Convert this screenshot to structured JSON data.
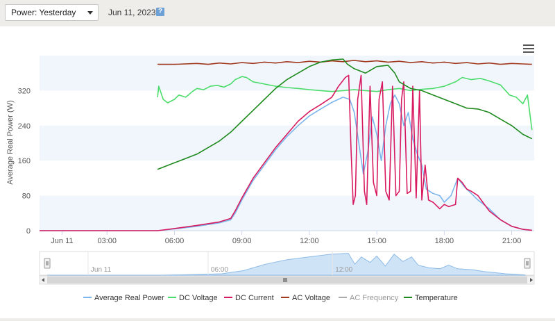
{
  "controls": {
    "period_select": "Power: Yesterday",
    "date": "Jun 11, 2023",
    "help": "?"
  },
  "colors": {
    "average_real_power": "#7cb5ec",
    "dc_voltage": "#4cdc6c",
    "dc_current": "#d81b60",
    "ac_voltage": "#a0391e",
    "ac_frequency": "#aaaaaa",
    "temperature": "#1e8a1e",
    "band": "#f0f6fb"
  },
  "chart_data": {
    "type": "line",
    "ylabel": "Average Real Power (W)",
    "ylim": [
      0,
      400
    ],
    "yticks": [
      0,
      80,
      160,
      240,
      320
    ],
    "xlim": [
      0,
      22
    ],
    "xticks": [
      {
        "x": 1,
        "label": "Jun 11"
      },
      {
        "x": 3,
        "label": "03:00"
      },
      {
        "x": 6,
        "label": "06:00"
      },
      {
        "x": 9,
        "label": "09:00"
      },
      {
        "x": 12,
        "label": "12:00"
      },
      {
        "x": 15,
        "label": "15:00"
      },
      {
        "x": 18,
        "label": "18:00"
      },
      {
        "x": 21,
        "label": "21:00"
      }
    ],
    "navigator_labels": [
      {
        "x": 2,
        "label": "Jun 11"
      },
      {
        "x": 7.5,
        "label": "06:00"
      },
      {
        "x": 13.2,
        "label": "12:00"
      }
    ],
    "legend": [
      "Average Real Power",
      "DC Voltage",
      "DC Current",
      "AC Voltage",
      "AC Frequency",
      "Temperature"
    ],
    "legend_position": "bottom",
    "series": [
      {
        "name": "Average Real Power",
        "key": "average_real_power",
        "points": [
          [
            0,
            0
          ],
          [
            5.25,
            0
          ],
          [
            6,
            4
          ],
          [
            7,
            10
          ],
          [
            8,
            18
          ],
          [
            8.5,
            25
          ],
          [
            8.7,
            40
          ],
          [
            9,
            70
          ],
          [
            9.5,
            115
          ],
          [
            10,
            150
          ],
          [
            10.5,
            185
          ],
          [
            11,
            215
          ],
          [
            11.5,
            240
          ],
          [
            12,
            262
          ],
          [
            12.5,
            278
          ],
          [
            13,
            293
          ],
          [
            13.5,
            305
          ],
          [
            13.8,
            300
          ],
          [
            14,
            270
          ],
          [
            14.2,
            200
          ],
          [
            14.4,
            130
          ],
          [
            14.6,
            180
          ],
          [
            14.8,
            260
          ],
          [
            15,
            220
          ],
          [
            15.2,
            160
          ],
          [
            15.4,
            240
          ],
          [
            15.6,
            290
          ],
          [
            15.8,
            310
          ],
          [
            16,
            290
          ],
          [
            16.2,
            240
          ],
          [
            16.4,
            270
          ],
          [
            16.6,
            210
          ],
          [
            16.8,
            175
          ],
          [
            17,
            150
          ],
          [
            17.2,
            95
          ],
          [
            17.5,
            85
          ],
          [
            17.8,
            80
          ],
          [
            18,
            65
          ],
          [
            18.3,
            80
          ],
          [
            18.6,
            120
          ],
          [
            18.9,
            100
          ],
          [
            19.2,
            85
          ],
          [
            19.5,
            70
          ],
          [
            20,
            50
          ],
          [
            20.5,
            25
          ],
          [
            21,
            10
          ],
          [
            21.5,
            3
          ],
          [
            21.9,
            1
          ]
        ]
      },
      {
        "name": "DC Voltage",
        "key": "dc_voltage",
        "points": [
          [
            5.25,
            305
          ],
          [
            5.3,
            330
          ],
          [
            5.5,
            300
          ],
          [
            5.7,
            292
          ],
          [
            6,
            300
          ],
          [
            6.2,
            310
          ],
          [
            6.5,
            305
          ],
          [
            6.8,
            318
          ],
          [
            7,
            325
          ],
          [
            7.3,
            322
          ],
          [
            7.6,
            330
          ],
          [
            7.9,
            332
          ],
          [
            8.2,
            328
          ],
          [
            8.5,
            335
          ],
          [
            8.7,
            345
          ],
          [
            9,
            352
          ],
          [
            9.2,
            350
          ],
          [
            9.5,
            340
          ],
          [
            10,
            335
          ],
          [
            10.5,
            330
          ],
          [
            11,
            327
          ],
          [
            11.5,
            325
          ],
          [
            12,
            322
          ],
          [
            12.5,
            320
          ],
          [
            13,
            318
          ],
          [
            13.5,
            320
          ],
          [
            14,
            322
          ],
          [
            14.5,
            320
          ],
          [
            15,
            318
          ],
          [
            15.5,
            322
          ],
          [
            16,
            325
          ],
          [
            16.5,
            320
          ],
          [
            17,
            323
          ],
          [
            17.5,
            325
          ],
          [
            18,
            330
          ],
          [
            18.5,
            340
          ],
          [
            18.8,
            350
          ],
          [
            19.2,
            345
          ],
          [
            19.6,
            348
          ],
          [
            20,
            342
          ],
          [
            20.5,
            333
          ],
          [
            20.9,
            310
          ],
          [
            21.2,
            305
          ],
          [
            21.5,
            290
          ],
          [
            21.7,
            310
          ],
          [
            21.9,
            230
          ]
        ]
      },
      {
        "name": "DC Current",
        "key": "dc_current",
        "points": [
          [
            0,
            0
          ],
          [
            5.25,
            0
          ],
          [
            6,
            5
          ],
          [
            7,
            12
          ],
          [
            8,
            20
          ],
          [
            8.5,
            28
          ],
          [
            8.7,
            45
          ],
          [
            9,
            75
          ],
          [
            9.5,
            120
          ],
          [
            10,
            155
          ],
          [
            10.5,
            190
          ],
          [
            11,
            220
          ],
          [
            11.5,
            250
          ],
          [
            12,
            272
          ],
          [
            12.5,
            288
          ],
          [
            13,
            305
          ],
          [
            13.3,
            330
          ],
          [
            13.6,
            350
          ],
          [
            13.75,
            355
          ],
          [
            13.85,
            190
          ],
          [
            13.95,
            60
          ],
          [
            14.05,
            80
          ],
          [
            14.15,
            300
          ],
          [
            14.3,
            355
          ],
          [
            14.45,
            90
          ],
          [
            14.55,
            60
          ],
          [
            14.7,
            330
          ],
          [
            14.85,
            110
          ],
          [
            15,
            80
          ],
          [
            15.1,
            300
          ],
          [
            15.25,
            340
          ],
          [
            15.4,
            90
          ],
          [
            15.55,
            70
          ],
          [
            15.7,
            330
          ],
          [
            15.85,
            80
          ],
          [
            16,
            90
          ],
          [
            16.1,
            300
          ],
          [
            16.2,
            340
          ],
          [
            16.35,
            85
          ],
          [
            16.5,
            90
          ],
          [
            16.6,
            330
          ],
          [
            16.75,
            75
          ],
          [
            16.9,
            320
          ],
          [
            17,
            70
          ],
          [
            17.15,
            150
          ],
          [
            17.3,
            70
          ],
          [
            17.5,
            65
          ],
          [
            17.8,
            50
          ],
          [
            18,
            60
          ],
          [
            18.2,
            55
          ],
          [
            18.5,
            60
          ],
          [
            18.6,
            120
          ],
          [
            18.8,
            110
          ],
          [
            19,
            95
          ],
          [
            19.2,
            90
          ],
          [
            19.5,
            80
          ],
          [
            20,
            45
          ],
          [
            20.5,
            25
          ],
          [
            21,
            10
          ],
          [
            21.5,
            3
          ],
          [
            21.9,
            1
          ]
        ]
      },
      {
        "name": "AC Voltage",
        "key": "ac_voltage",
        "points": [
          [
            5.25,
            380
          ],
          [
            6,
            380
          ],
          [
            7,
            382
          ],
          [
            7.5,
            380
          ],
          [
            8,
            383
          ],
          [
            8.5,
            381
          ],
          [
            9,
            384
          ],
          [
            9.5,
            382
          ],
          [
            10,
            385
          ],
          [
            10.5,
            383
          ],
          [
            11,
            386
          ],
          [
            11.5,
            384
          ],
          [
            12,
            387
          ],
          [
            12.5,
            385
          ],
          [
            13,
            388
          ],
          [
            13.5,
            386
          ],
          [
            14,
            389
          ],
          [
            14.5,
            386
          ],
          [
            15,
            388
          ],
          [
            15.5,
            385
          ],
          [
            16,
            387
          ],
          [
            16.5,
            384
          ],
          [
            17,
            386
          ],
          [
            17.5,
            383
          ],
          [
            18,
            385
          ],
          [
            18.5,
            382
          ],
          [
            19,
            384
          ],
          [
            19.5,
            381
          ],
          [
            20,
            383
          ],
          [
            20.5,
            380
          ],
          [
            21,
            382
          ],
          [
            21.5,
            381
          ],
          [
            21.9,
            380
          ]
        ]
      },
      {
        "name": "AC Frequency",
        "key": "ac_frequency",
        "points": []
      },
      {
        "name": "Temperature",
        "key": "temperature",
        "points": [
          [
            5.25,
            140
          ],
          [
            6,
            155
          ],
          [
            7,
            175
          ],
          [
            8,
            205
          ],
          [
            8.5,
            225
          ],
          [
            9,
            250
          ],
          [
            9.5,
            275
          ],
          [
            10,
            300
          ],
          [
            10.5,
            325
          ],
          [
            11,
            345
          ],
          [
            11.5,
            360
          ],
          [
            12,
            375
          ],
          [
            12.5,
            385
          ],
          [
            13,
            390
          ],
          [
            13.5,
            392
          ],
          [
            13.7,
            380
          ],
          [
            14,
            370
          ],
          [
            14.5,
            360
          ],
          [
            15,
            375
          ],
          [
            15.5,
            378
          ],
          [
            15.8,
            360
          ],
          [
            16,
            340
          ],
          [
            16.5,
            325
          ],
          [
            17,
            320
          ],
          [
            17.5,
            310
          ],
          [
            18,
            300
          ],
          [
            18.5,
            290
          ],
          [
            19,
            280
          ],
          [
            19.5,
            278
          ],
          [
            20,
            270
          ],
          [
            20.5,
            255
          ],
          [
            21,
            240
          ],
          [
            21.5,
            220
          ],
          [
            21.9,
            210
          ]
        ]
      }
    ],
    "navigator": {
      "points": [
        [
          0,
          0
        ],
        [
          5.25,
          0
        ],
        [
          6,
          3
        ],
        [
          7,
          8
        ],
        [
          8,
          15
        ],
        [
          9,
          50
        ],
        [
          10,
          120
        ],
        [
          11,
          170
        ],
        [
          12,
          200
        ],
        [
          13,
          230
        ],
        [
          13.8,
          240
        ],
        [
          14.1,
          120
        ],
        [
          14.4,
          200
        ],
        [
          14.8,
          140
        ],
        [
          15.1,
          210
        ],
        [
          15.5,
          100
        ],
        [
          15.9,
          230
        ],
        [
          16.3,
          150
        ],
        [
          16.7,
          200
        ],
        [
          17,
          110
        ],
        [
          17.5,
          80
        ],
        [
          18,
          70
        ],
        [
          18.4,
          110
        ],
        [
          18.8,
          70
        ],
        [
          19.5,
          60
        ],
        [
          20,
          40
        ],
        [
          21,
          15
        ],
        [
          21.9,
          2
        ]
      ]
    }
  }
}
